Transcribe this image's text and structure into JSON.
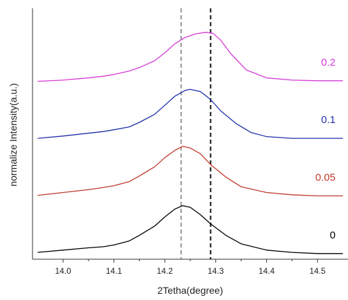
{
  "chart_data": {
    "type": "line",
    "xlabel": "2Tetha(degree)",
    "ylabel": "normalize Intensity(a.u.)",
    "xlim": [
      13.94,
      14.56
    ],
    "ylim": [
      0,
      4.4
    ],
    "x_ticks": [
      "14.0",
      "14.1",
      "14.2",
      "14.3",
      "14.4",
      "14.5"
    ],
    "x_tick_values": [
      14.0,
      14.1,
      14.2,
      14.3,
      14.4,
      14.5
    ],
    "y_ticks_shown": false,
    "grid": false,
    "legend": "none",
    "reference_lines": [
      {
        "x": 14.232,
        "color": "#777777",
        "style": "dashed"
      },
      {
        "x": 14.29,
        "color": "#111111",
        "style": "dashed"
      }
    ],
    "series": [
      {
        "name": "0",
        "color": "#000000",
        "x": [
          13.95,
          14.0,
          14.05,
          14.08,
          14.1,
          14.13,
          14.15,
          14.18,
          14.2,
          14.22,
          14.235,
          14.25,
          14.27,
          14.29,
          14.32,
          14.35,
          14.4,
          14.45,
          14.5,
          14.55
        ],
        "y": [
          0.12,
          0.16,
          0.2,
          0.22,
          0.25,
          0.32,
          0.42,
          0.58,
          0.74,
          0.88,
          0.94,
          0.91,
          0.78,
          0.62,
          0.42,
          0.27,
          0.16,
          0.12,
          0.1,
          0.1
        ]
      },
      {
        "name": "0.05",
        "color": "#c0392b",
        "x": [
          13.95,
          14.0,
          14.05,
          14.08,
          14.1,
          14.13,
          14.15,
          14.18,
          14.2,
          14.22,
          14.235,
          14.25,
          14.27,
          14.29,
          14.32,
          14.35,
          14.4,
          14.45,
          14.5,
          14.55
        ],
        "y": [
          1.12,
          1.17,
          1.22,
          1.26,
          1.29,
          1.36,
          1.46,
          1.62,
          1.78,
          1.91,
          1.98,
          1.95,
          1.85,
          1.66,
          1.44,
          1.27,
          1.17,
          1.13,
          1.11,
          1.11
        ]
      },
      {
        "name": "0.1",
        "color": "#1f2fa8",
        "x": [
          13.95,
          14.0,
          14.05,
          14.08,
          14.1,
          14.13,
          14.15,
          14.18,
          14.2,
          14.22,
          14.24,
          14.25,
          14.27,
          14.29,
          14.31,
          14.34,
          14.37,
          14.4,
          14.45,
          14.5,
          14.55
        ],
        "y": [
          2.12,
          2.16,
          2.21,
          2.24,
          2.27,
          2.32,
          2.4,
          2.54,
          2.7,
          2.86,
          2.96,
          2.98,
          2.94,
          2.8,
          2.6,
          2.38,
          2.22,
          2.15,
          2.12,
          2.12,
          2.12
        ]
      },
      {
        "name": "0.2",
        "color": "#d63ad6",
        "x": [
          13.95,
          14.0,
          14.05,
          14.08,
          14.1,
          14.13,
          14.15,
          14.18,
          14.2,
          14.22,
          14.24,
          14.26,
          14.28,
          14.295,
          14.31,
          14.33,
          14.36,
          14.4,
          14.45,
          14.5,
          14.55
        ],
        "y": [
          3.12,
          3.14,
          3.18,
          3.21,
          3.24,
          3.3,
          3.36,
          3.48,
          3.62,
          3.78,
          3.89,
          3.95,
          3.98,
          3.96,
          3.84,
          3.6,
          3.32,
          3.18,
          3.14,
          3.13,
          3.13
        ]
      }
    ]
  }
}
